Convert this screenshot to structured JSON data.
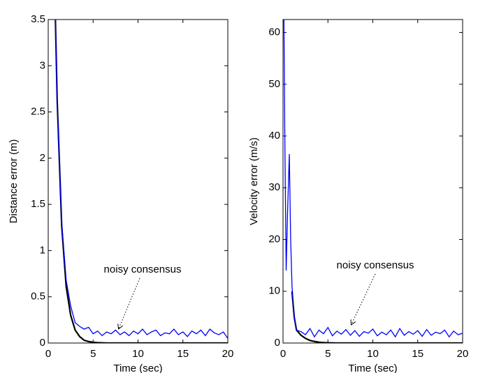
{
  "chart_data": [
    {
      "type": "line",
      "xlabel": "Time (sec)",
      "ylabel": "Distance error (m)",
      "annotation": "noisy consensus",
      "xlim": [
        0,
        20
      ],
      "xticks": [
        0,
        5,
        10,
        15,
        20
      ],
      "ylim": [
        0,
        3.5
      ],
      "yticks": [
        0,
        0.5,
        1,
        1.5,
        2,
        2.5,
        3,
        3.5
      ],
      "x": [
        0.8,
        1,
        1.5,
        2,
        2.5,
        3,
        3.5,
        4,
        4.5,
        5,
        5.5,
        6,
        6.5,
        7,
        7.5,
        8,
        8.5,
        9,
        9.5,
        10,
        10.5,
        11,
        11.5,
        12,
        12.5,
        13,
        13.5,
        14,
        14.5,
        15,
        15.5,
        16,
        16.5,
        17,
        17.5,
        18,
        18.5,
        19,
        19.5,
        20
      ],
      "series": [
        {
          "color": "#000000",
          "values": [
            3.5,
            2.62,
            1.27,
            0.61,
            0.3,
            0.14,
            0.07,
            0.03,
            0.016,
            0.008,
            0.004,
            0.002,
            0,
            0,
            0,
            0,
            0,
            0,
            0,
            0,
            0,
            0,
            0,
            0,
            0,
            0,
            0,
            0,
            0,
            0,
            0,
            0,
            0,
            0,
            0,
            0,
            0,
            0,
            0,
            0
          ]
        },
        {
          "color": "#0000ff",
          "values": [
            3.5,
            2.6,
            1.3,
            0.68,
            0.4,
            0.22,
            0.18,
            0.15,
            0.17,
            0.1,
            0.13,
            0.08,
            0.12,
            0.1,
            0.14,
            0.09,
            0.12,
            0.08,
            0.13,
            0.1,
            0.15,
            0.09,
            0.12,
            0.14,
            0.08,
            0.11,
            0.1,
            0.15,
            0.09,
            0.12,
            0.07,
            0.13,
            0.1,
            0.14,
            0.08,
            0.15,
            0.11,
            0.09,
            0.12,
            0.05
          ]
        }
      ]
    },
    {
      "type": "line",
      "xlabel": "Time (sec)",
      "ylabel": "Velocity error (m/s)",
      "annotation": "noisy consensus",
      "xlim": [
        0,
        20
      ],
      "xticks": [
        0,
        5,
        10,
        15,
        20
      ],
      "ylim": [
        0,
        62.5
      ],
      "yticks": [
        0,
        10,
        20,
        30,
        40,
        50,
        60
      ],
      "x": [
        0.1,
        0.2,
        0.35,
        0.5,
        0.7,
        0.85,
        1,
        1.25,
        1.5,
        2,
        2.5,
        3,
        3.5,
        4,
        4.5,
        5,
        5.5,
        6,
        6.5,
        7,
        7.5,
        8,
        8.5,
        9,
        9.5,
        10,
        10.5,
        11,
        11.5,
        12,
        12.5,
        13,
        13.5,
        14,
        14.5,
        15,
        15.5,
        16,
        16.5,
        17,
        17.5,
        18,
        18.5,
        19,
        19.5,
        20
      ],
      "series": [
        {
          "color": "#000000",
          "values": [
            null,
            null,
            null,
            null,
            null,
            null,
            10,
            5,
            2.5,
            1.5,
            0.9,
            0.5,
            0.3,
            0.15,
            0.08,
            0.04,
            0.02,
            0,
            0,
            0,
            0,
            0,
            0,
            0,
            0,
            0,
            0,
            0,
            0,
            0,
            0,
            0,
            0,
            0,
            0,
            0,
            0,
            0,
            0,
            0,
            0,
            0,
            0,
            0,
            0,
            0
          ]
        },
        {
          "color": "#0000ff",
          "values": [
            62.5,
            40,
            14,
            25,
            36.5,
            20,
            11,
            5,
            2.5,
            2.2,
            1.6,
            2.8,
            1.2,
            2.5,
            1.8,
            3,
            1.4,
            2.3,
            1.7,
            2.6,
            1.5,
            2.4,
            1.3,
            2.2,
            1.9,
            2.7,
            1.4,
            2.1,
            1.6,
            2.5,
            1.2,
            2.8,
            1.5,
            2.2,
            1.7,
            2.4,
            1.3,
            2.6,
            1.5,
            2.1,
            1.8,
            2.5,
            1.2,
            2.3,
            1.6,
            1.9
          ]
        }
      ]
    }
  ]
}
